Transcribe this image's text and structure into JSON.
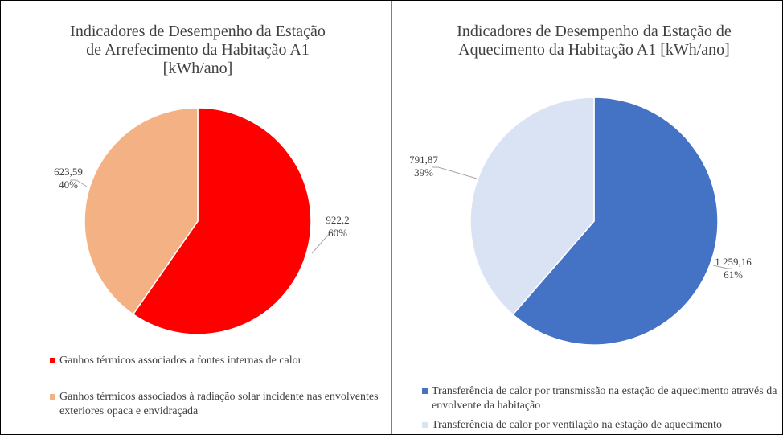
{
  "chart_data": [
    {
      "type": "pie",
      "title": [
        "Indicadores de Desempenho da Estação",
        "de Arrefecimento da Habitação A1",
        "[kWh/ano]"
      ],
      "categories": [
        "Ganhos térmicos associados a fontes internas de calor",
        "Ganhos térmicos associados à radiação solar incidente nas envolventes exteriores opaca e envidraçada"
      ],
      "values": [
        922.2,
        623.59
      ],
      "value_labels": [
        "922,2",
        "623,59"
      ],
      "percent_labels": [
        "60%",
        "40%"
      ],
      "colors": [
        "#ff0000",
        "#f4b183"
      ]
    },
    {
      "type": "pie",
      "title": [
        "Indicadores de Desempenho da Estação de",
        "Aquecimento da Habitação A1 [kWh/ano]"
      ],
      "categories": [
        "Transferência de calor por transmissão na estação de aquecimento através da envolvente da habitação",
        "Transferência de calor por ventilação na estação de aquecimento"
      ],
      "values": [
        1259.16,
        791.87
      ],
      "value_labels": [
        "1 259,16",
        "791,87"
      ],
      "percent_labels": [
        "61%",
        "39%"
      ],
      "colors": [
        "#4472c4",
        "#dae3f3"
      ]
    }
  ]
}
